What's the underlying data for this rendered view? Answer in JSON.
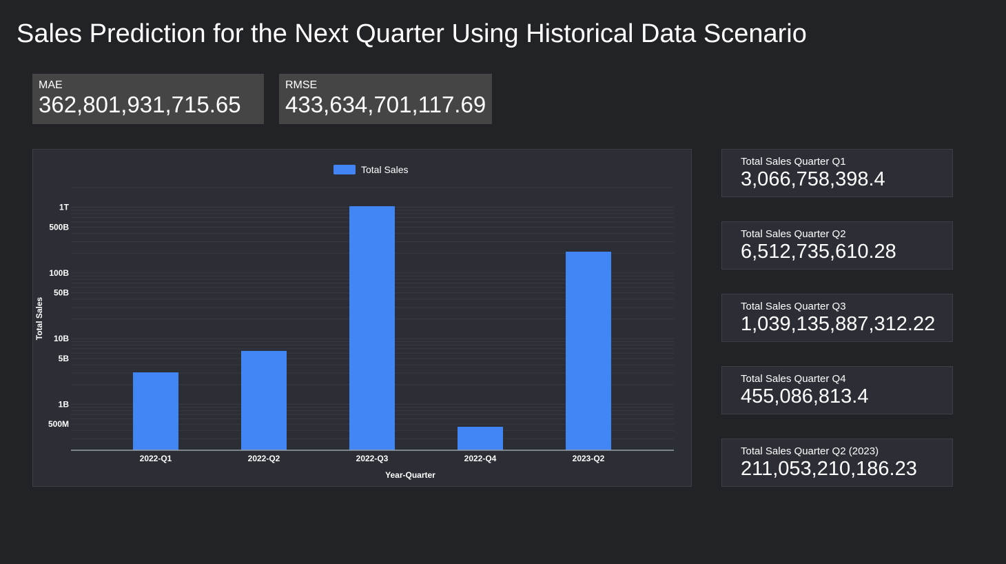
{
  "page": {
    "title": "Sales Prediction for the Next Quarter Using Historical Data Scenario"
  },
  "metrics": [
    {
      "label": "MAE",
      "value": "362,801,931,715.65"
    },
    {
      "label": "RMSE",
      "value": "433,634,701,117.69"
    }
  ],
  "kpis": [
    {
      "label": "Total Sales Quarter Q1",
      "value": "3,066,758,398.4"
    },
    {
      "label": "Total Sales Quarter Q2",
      "value": "6,512,735,610.28"
    },
    {
      "label": "Total Sales Quarter Q3",
      "value": "1,039,135,887,312.22"
    },
    {
      "label": "Total Sales Quarter Q4",
      "value": "455,086,813.4"
    },
    {
      "label": "Total Sales Quarter Q2 (2023)",
      "value": "211,053,210,186.23"
    }
  ],
  "colors": {
    "background": "#222327",
    "panel": "#2c2e36",
    "metric_box": "#454545",
    "bar": "#4285f4"
  },
  "chart_data": {
    "type": "bar",
    "title": "",
    "categories": [
      "2022-Q1",
      "2022-Q2",
      "2022-Q3",
      "2022-Q4",
      "2023-Q2"
    ],
    "series": [
      {
        "name": "Total Sales",
        "values": [
          3066758398.4,
          6512735610.28,
          1039135887312.22,
          455086813.4,
          211053210186.23
        ]
      }
    ],
    "xlabel": "Year-Quarter",
    "ylabel": "Total Sales",
    "yscale": "log",
    "ylim": [
      200000000,
      2000000000000
    ],
    "y_ticks": [
      {
        "value": 500000000,
        "label": "500M"
      },
      {
        "value": 1000000000,
        "label": "1B"
      },
      {
        "value": 5000000000,
        "label": "5B"
      },
      {
        "value": 10000000000,
        "label": "10B"
      },
      {
        "value": 50000000000,
        "label": "50B"
      },
      {
        "value": 100000000000,
        "label": "100B"
      },
      {
        "value": 500000000000,
        "label": "500B"
      },
      {
        "value": 1000000000000,
        "label": "1T"
      }
    ],
    "legend_position": "top-center",
    "grid": true
  }
}
